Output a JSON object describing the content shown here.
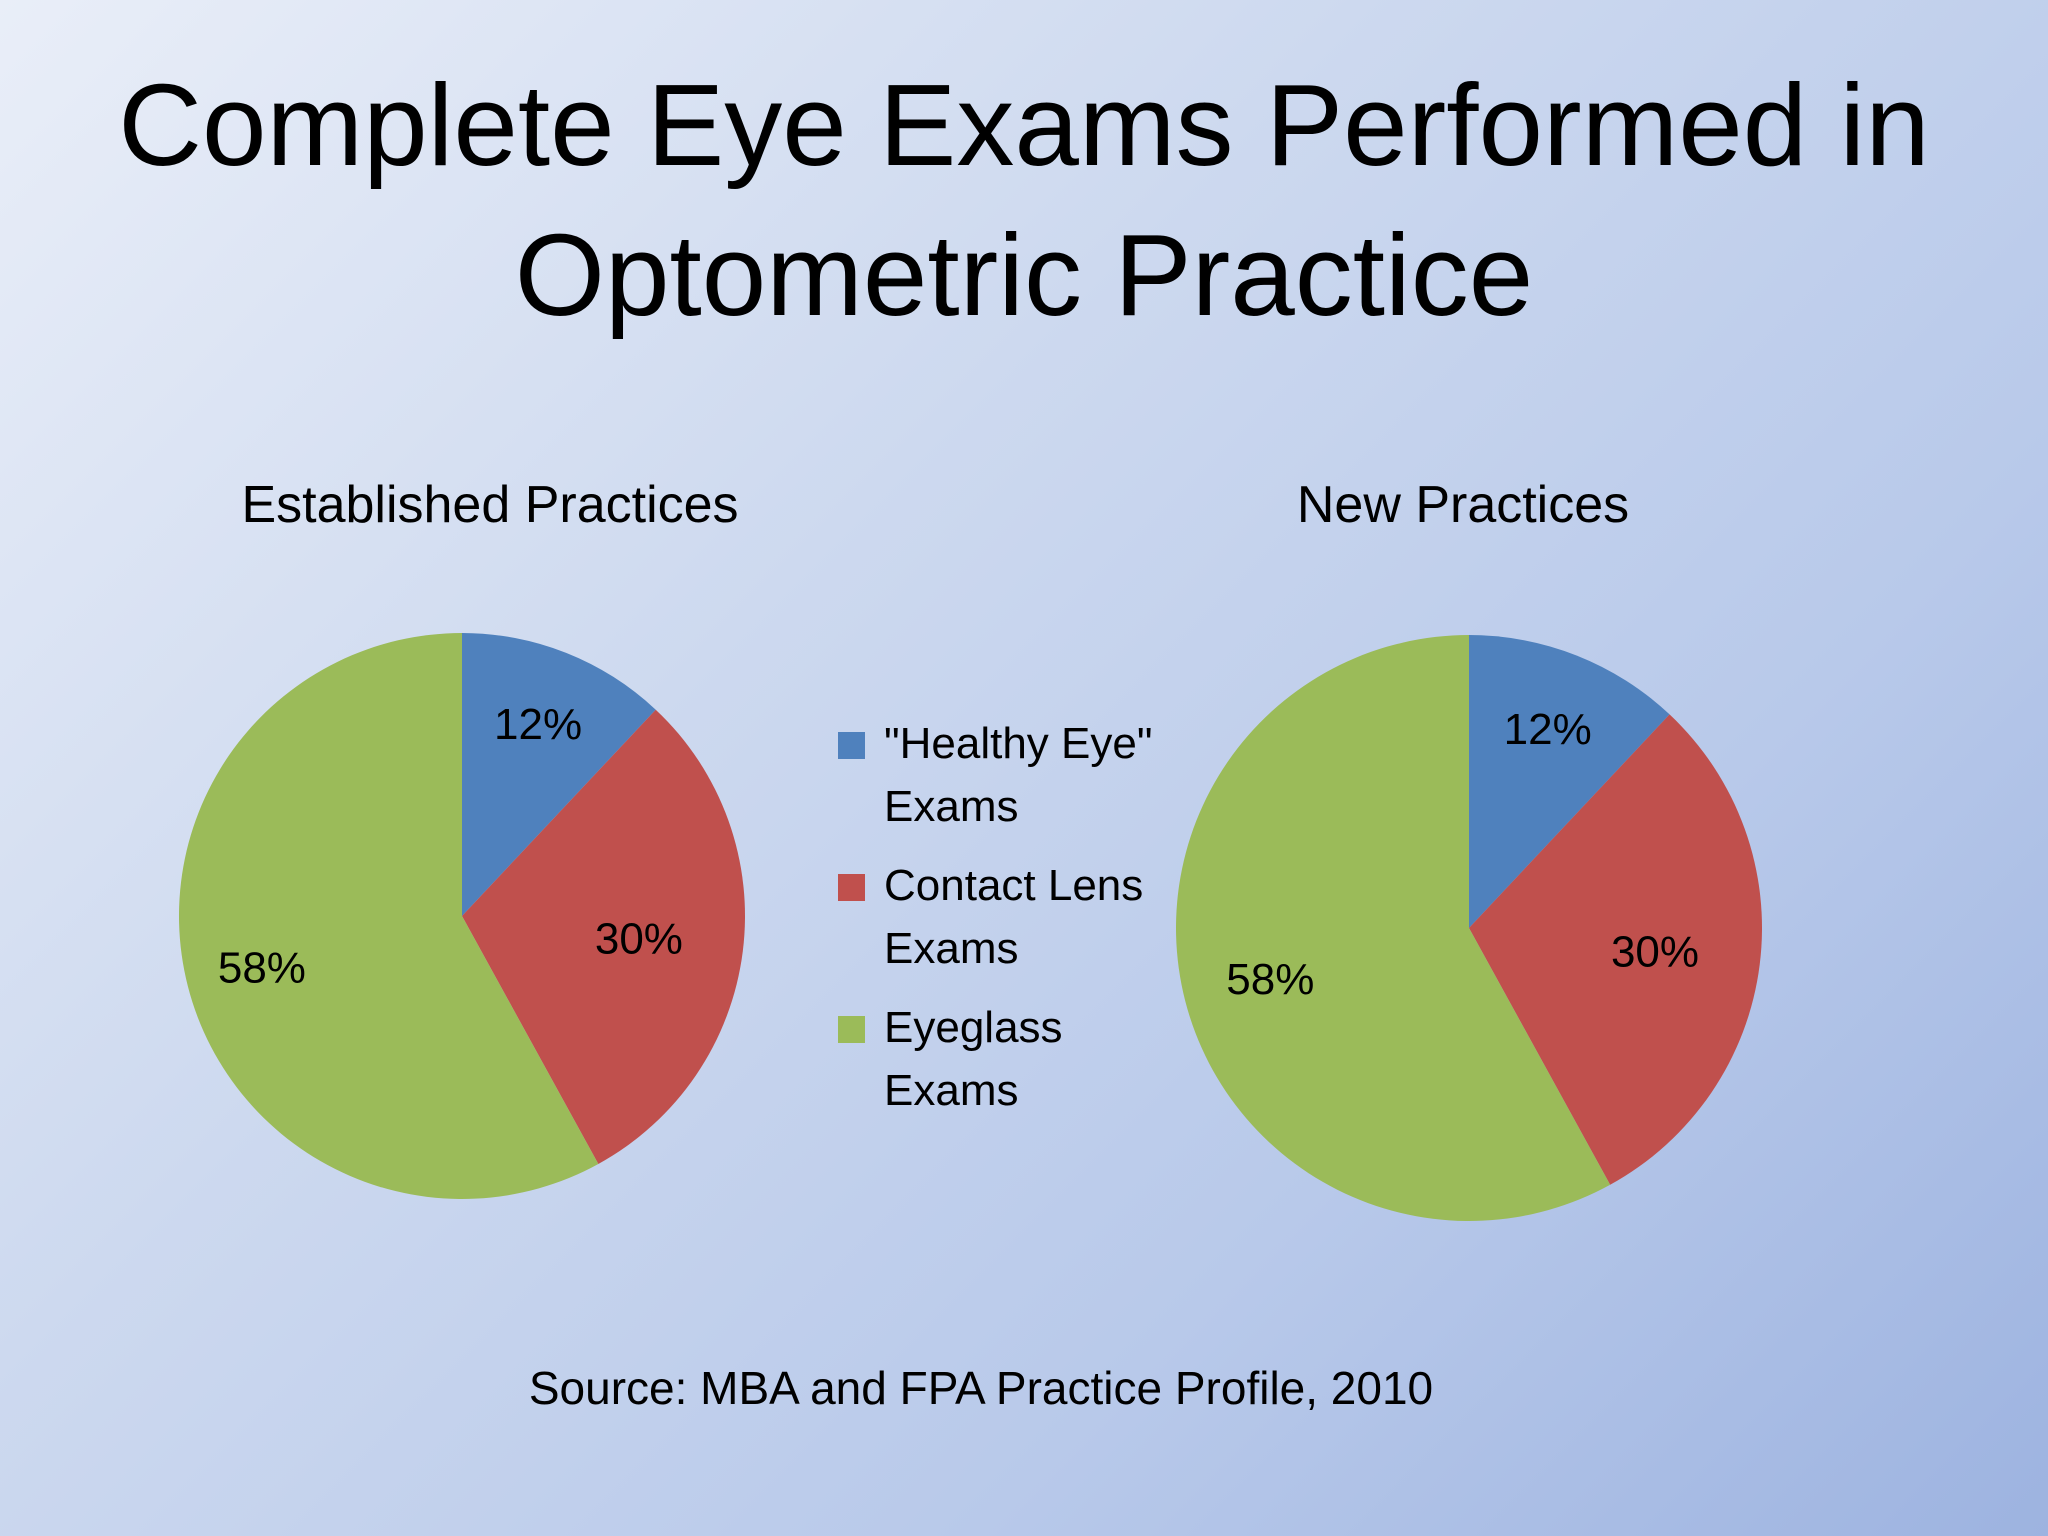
{
  "slide": {
    "title_lines": [
      "Complete Eye Exams Performed in",
      "Optometric Practice"
    ],
    "source": "Source: MBA and FPA Practice Profile, 2010"
  },
  "chart_data": [
    {
      "type": "pie",
      "title": "Established Practices",
      "categories": [
        "\"Healthy Eye\" Exams",
        "Contact Lens Exams",
        "Eyeglass Exams"
      ],
      "values": [
        12,
        30,
        58
      ],
      "labels": [
        "12%",
        "30%",
        "58%"
      ],
      "colors": [
        "#4f81bd",
        "#c0504d",
        "#9bbb59"
      ]
    },
    {
      "type": "pie",
      "title": "New Practices",
      "categories": [
        "\"Healthy Eye\" Exams",
        "Contact Lens Exams",
        "Eyeglass Exams"
      ],
      "values": [
        12,
        30,
        58
      ],
      "labels": [
        "12%",
        "30%",
        "58%"
      ],
      "colors": [
        "#4f81bd",
        "#c0504d",
        "#9bbb59"
      ]
    }
  ],
  "legend": {
    "placement": "center",
    "items": [
      {
        "label_lines": [
          "\"Healthy Eye\"",
          "Exams"
        ],
        "color": "#4f81bd"
      },
      {
        "label_lines": [
          "Contact Lens",
          "Exams"
        ],
        "color": "#c0504d"
      },
      {
        "label_lines": [
          "Eyeglass",
          "Exams"
        ],
        "color": "#9bbb59"
      }
    ]
  }
}
